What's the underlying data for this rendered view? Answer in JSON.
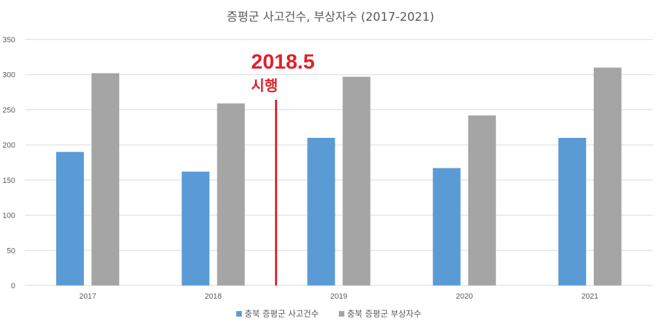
{
  "chart_data": {
    "type": "bar",
    "title": "증평군 사고건수, 부상자수 (2017-2021)",
    "categories": [
      "2017",
      "2018",
      "2019",
      "2020",
      "2021"
    ],
    "series": [
      {
        "name": "충북 증평군 사고건수",
        "values": [
          190,
          162,
          210,
          167,
          210
        ],
        "color": "#5b9bd5"
      },
      {
        "name": "충북 증평군 부상자수",
        "values": [
          302,
          259,
          297,
          242,
          310
        ],
        "color": "#a5a5a5"
      }
    ],
    "ylim": [
      0,
      350
    ],
    "yticks": [
      "0",
      "50",
      "100",
      "150",
      "200",
      "250",
      "300",
      "350"
    ],
    "grid": true,
    "legend": "bottom",
    "annotation": {
      "value": "2018.5",
      "label": "2018.5",
      "sublabel": "시행",
      "color": "#e0202a"
    }
  }
}
